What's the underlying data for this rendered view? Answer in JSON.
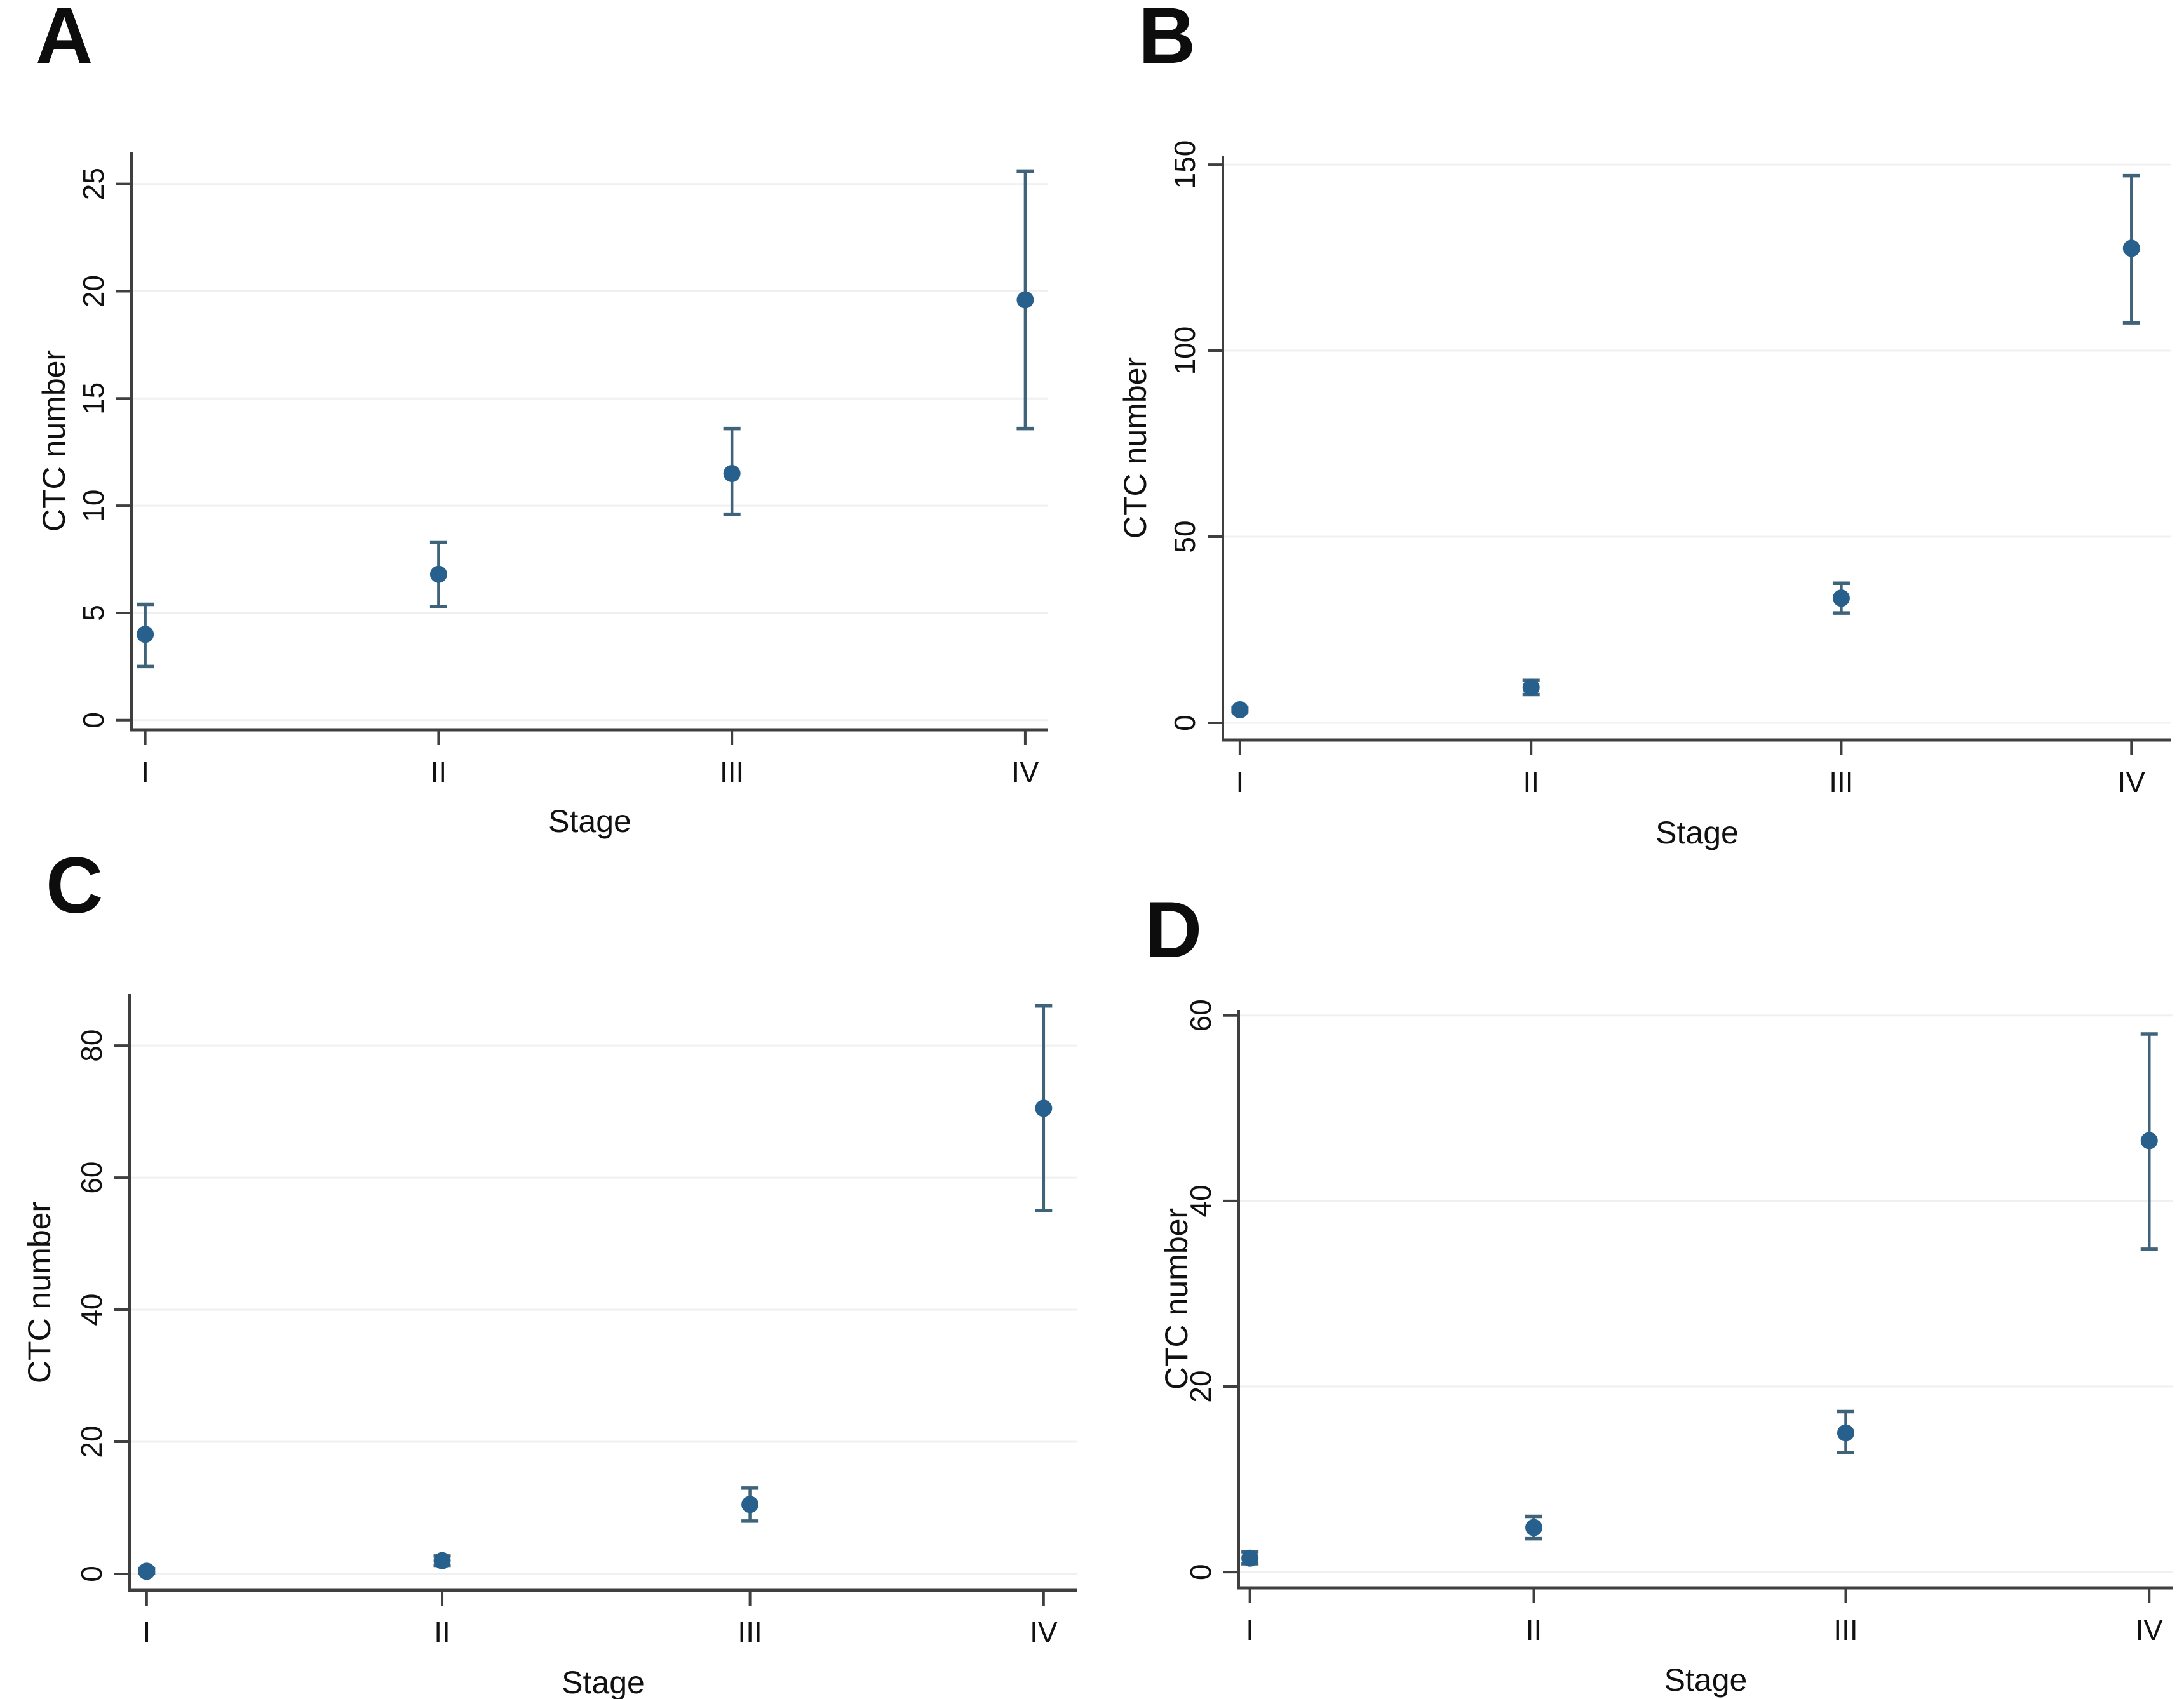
{
  "figure_title": "",
  "style": {
    "marker_color": "#27608c",
    "error_bar_color": "#3f6379",
    "axis_color": "#3f3f3f",
    "gridline_color": "#f0f0f0",
    "text_color": "#111111",
    "background_color": "#ffffff"
  },
  "chart_data": [
    {
      "type": "scatter",
      "panel_label": "A",
      "title": "",
      "xlabel": "Stage",
      "ylabel": "CTC number",
      "legend": null,
      "grid": true,
      "categories": [
        "I",
        "II",
        "III",
        "IV"
      ],
      "yticks": [
        0,
        5,
        10,
        15,
        20,
        25
      ],
      "ylim": [
        -0.45,
        26.5
      ],
      "points": [
        {
          "category": "I",
          "value": 4.0,
          "ci_low": 2.5,
          "ci_high": 5.4
        },
        {
          "category": "II",
          "value": 6.8,
          "ci_low": 5.3,
          "ci_high": 8.3
        },
        {
          "category": "III",
          "value": 11.5,
          "ci_low": 9.6,
          "ci_high": 13.6
        },
        {
          "category": "IV",
          "value": 19.6,
          "ci_low": 13.6,
          "ci_high": 25.6
        }
      ]
    },
    {
      "type": "scatter",
      "panel_label": "B",
      "title": "",
      "xlabel": "Stage",
      "ylabel": "CTC number",
      "legend": null,
      "grid": true,
      "categories": [
        "I",
        "II",
        "III",
        "IV"
      ],
      "yticks": [
        0,
        50,
        100,
        150
      ],
      "ylim": [
        -4.6,
        152.4
      ],
      "points": [
        {
          "category": "I",
          "value": 3.5,
          "ci_low": 3.0,
          "ci_high": 4.1
        },
        {
          "category": "II",
          "value": 9.5,
          "ci_low": 7.6,
          "ci_high": 11.4
        },
        {
          "category": "III",
          "value": 33.5,
          "ci_low": 29.5,
          "ci_high": 37.5
        },
        {
          "category": "IV",
          "value": 127.5,
          "ci_low": 107.5,
          "ci_high": 147.0
        }
      ]
    },
    {
      "type": "scatter",
      "panel_label": "C",
      "title": "",
      "xlabel": "Stage",
      "ylabel": "CTC number",
      "legend": null,
      "grid": true,
      "categories": [
        "I",
        "II",
        "III",
        "IV"
      ],
      "yticks": [
        0,
        20,
        40,
        60,
        80
      ],
      "ylim": [
        -2.5,
        87.8
      ],
      "points": [
        {
          "category": "I",
          "value": 0.4,
          "ci_low": 0.1,
          "ci_high": 0.8
        },
        {
          "category": "II",
          "value": 2.0,
          "ci_low": 1.3,
          "ci_high": 2.7
        },
        {
          "category": "III",
          "value": 10.5,
          "ci_low": 8.0,
          "ci_high": 13.0
        },
        {
          "category": "IV",
          "value": 70.5,
          "ci_low": 55.0,
          "ci_high": 86.0
        }
      ]
    },
    {
      "type": "scatter",
      "panel_label": "D",
      "title": "",
      "xlabel": "Stage",
      "ylabel": "CTC number",
      "legend": null,
      "grid": true,
      "categories": [
        "I",
        "II",
        "III",
        "IV"
      ],
      "yticks": [
        0,
        20,
        40,
        60
      ],
      "ylim": [
        -1.7,
        60.6
      ],
      "points": [
        {
          "category": "I",
          "value": 1.5,
          "ci_low": 0.9,
          "ci_high": 2.2
        },
        {
          "category": "II",
          "value": 4.8,
          "ci_low": 3.6,
          "ci_high": 6.0
        },
        {
          "category": "III",
          "value": 15.0,
          "ci_low": 12.9,
          "ci_high": 17.3
        },
        {
          "category": "IV",
          "value": 46.5,
          "ci_low": 34.8,
          "ci_high": 58.0
        }
      ]
    }
  ]
}
